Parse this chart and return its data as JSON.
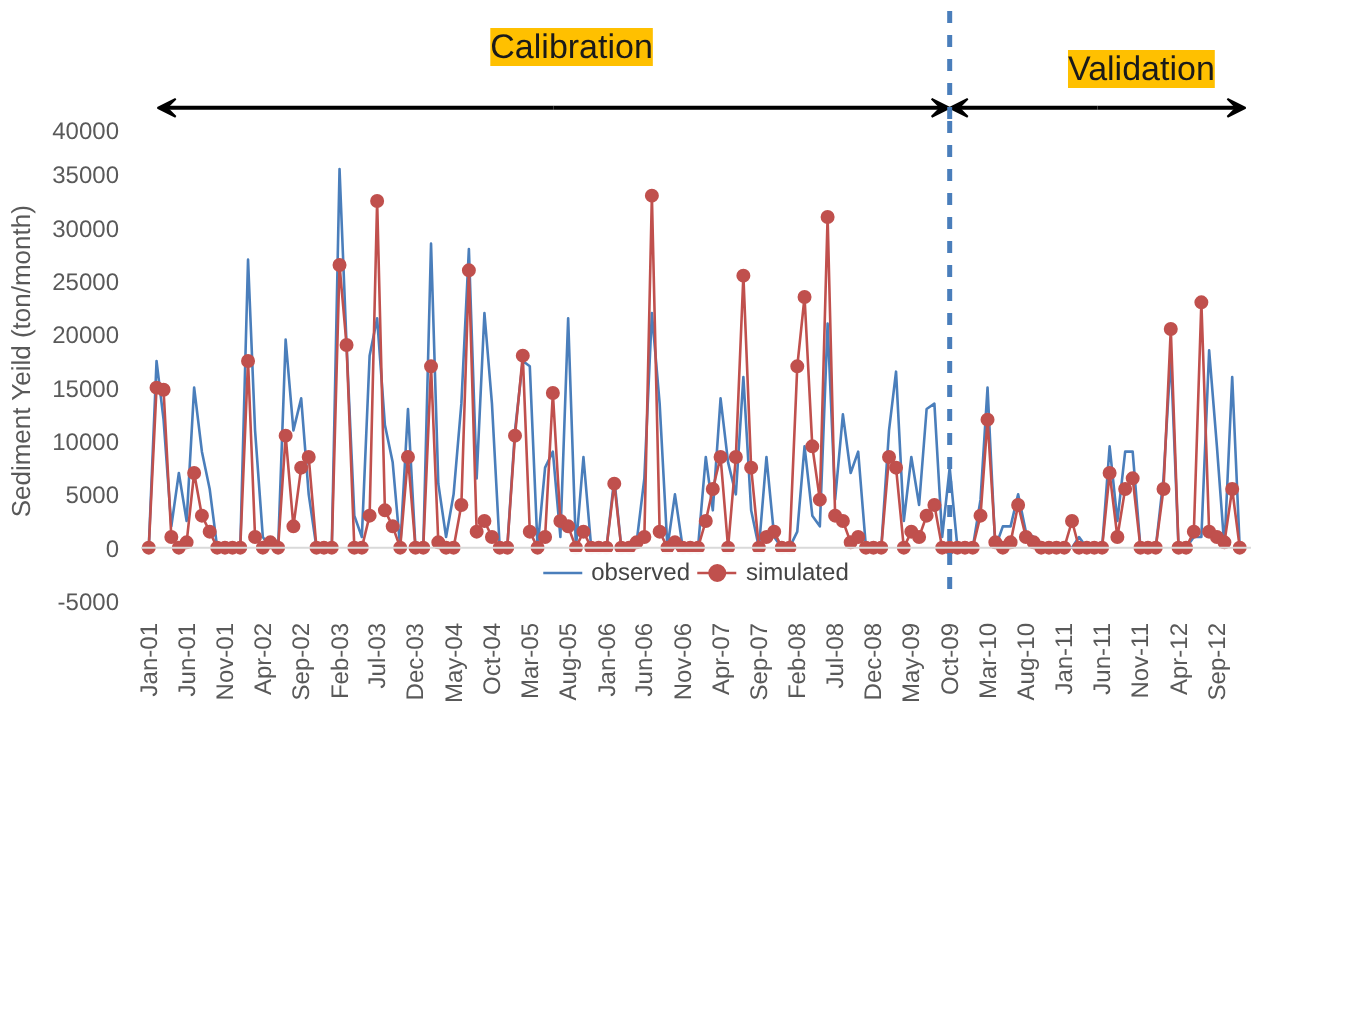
{
  "chart_data": {
    "type": "line",
    "x": [
      "2001-01",
      "2001-02",
      "2001-03",
      "2001-04",
      "2001-05",
      "2001-06",
      "2001-07",
      "2001-08",
      "2001-09",
      "2001-10",
      "2001-11",
      "2001-12",
      "2002-01",
      "2002-02",
      "2002-03",
      "2002-04",
      "2002-05",
      "2002-06",
      "2002-07",
      "2002-08",
      "2002-09",
      "2002-10",
      "2002-11",
      "2002-12",
      "2003-01",
      "2003-02",
      "2003-03",
      "2003-04",
      "2003-05",
      "2003-06",
      "2003-07",
      "2003-08",
      "2003-09",
      "2003-10",
      "2003-11",
      "2003-12",
      "2004-01",
      "2004-02",
      "2004-03",
      "2004-04",
      "2004-05",
      "2004-06",
      "2004-07",
      "2004-08",
      "2004-09",
      "2004-10",
      "2004-11",
      "2004-12",
      "2005-01",
      "2005-02",
      "2005-03",
      "2005-04",
      "2005-05",
      "2005-06",
      "2005-07",
      "2005-08",
      "2005-09",
      "2005-10",
      "2005-11",
      "2005-12",
      "2006-01",
      "2006-02",
      "2006-03",
      "2006-04",
      "2006-05",
      "2006-06",
      "2006-07",
      "2006-08",
      "2006-09",
      "2006-10",
      "2006-11",
      "2006-12",
      "2007-01",
      "2007-02",
      "2007-03",
      "2007-04",
      "2007-05",
      "2007-06",
      "2007-07",
      "2007-08",
      "2007-09",
      "2007-10",
      "2007-11",
      "2007-12",
      "2008-01",
      "2008-02",
      "2008-03",
      "2008-04",
      "2008-05",
      "2008-06",
      "2008-07",
      "2008-08",
      "2008-09",
      "2008-10",
      "2008-11",
      "2008-12",
      "2009-01",
      "2009-02",
      "2009-03",
      "2009-04",
      "2009-05",
      "2009-06",
      "2009-07",
      "2009-08",
      "2009-09",
      "2009-10",
      "2009-11",
      "2009-12",
      "2010-01",
      "2010-02",
      "2010-03",
      "2010-04",
      "2010-05",
      "2010-06",
      "2010-07",
      "2010-08",
      "2010-09",
      "2010-10",
      "2010-11",
      "2010-12",
      "2011-01",
      "2011-02",
      "2011-03",
      "2011-04",
      "2011-05",
      "2011-06",
      "2011-07",
      "2011-08",
      "2011-09",
      "2011-10",
      "2011-11",
      "2011-12",
      "2012-01",
      "2012-02",
      "2012-03",
      "2012-04",
      "2012-05",
      "2012-06",
      "2012-07",
      "2012-08",
      "2012-09",
      "2012-10",
      "2012-11",
      "2012-12"
    ],
    "series": [
      {
        "name": "observed",
        "color": "#4a7ebb",
        "marker": "none",
        "values": [
          0,
          17500,
          12000,
          2000,
          7000,
          2500,
          15000,
          9000,
          5500,
          0,
          0,
          0,
          0,
          27000,
          11000,
          1000,
          0,
          0,
          19500,
          11000,
          14000,
          5000,
          0,
          0,
          0,
          35500,
          19000,
          3000,
          1000,
          18000,
          21500,
          11500,
          8000,
          0,
          13000,
          0,
          0,
          28500,
          6000,
          1000,
          5000,
          13500,
          28000,
          6500,
          22000,
          13500,
          0,
          0,
          11000,
          17500,
          17000,
          0,
          7500,
          9000,
          1000,
          21500,
          0,
          8500,
          0,
          0,
          0,
          6500,
          0,
          0,
          500,
          6500,
          22000,
          13500,
          0,
          5000,
          0,
          0,
          0,
          8500,
          3500,
          14000,
          8000,
          5000,
          16000,
          3500,
          0,
          8500,
          1000,
          0,
          0,
          1500,
          9500,
          3000,
          2000,
          21000,
          4500,
          12500,
          7000,
          9000,
          0,
          0,
          0,
          11000,
          16500,
          2500,
          8500,
          4000,
          13000,
          13500,
          1000,
          7500,
          0,
          0,
          0,
          4500,
          15000,
          0,
          2000,
          2000,
          5000,
          1500,
          1000,
          0,
          0,
          0,
          0,
          0,
          1000,
          0,
          0,
          0,
          9500,
          2500,
          9000,
          9000,
          0,
          0,
          0,
          6500,
          18000,
          0,
          0,
          1000,
          1000,
          18500,
          9500,
          0,
          16000,
          0
        ]
      },
      {
        "name": "simulated",
        "color": "#c0504d",
        "marker": "circle",
        "values": [
          0,
          15000,
          14800,
          1000,
          0,
          500,
          7000,
          3000,
          1500,
          0,
          0,
          0,
          0,
          17500,
          1000,
          0,
          500,
          0,
          10500,
          2000,
          7500,
          8500,
          0,
          0,
          0,
          26500,
          19000,
          0,
          0,
          3000,
          32500,
          3500,
          2000,
          0,
          8500,
          0,
          0,
          17000,
          500,
          0,
          0,
          4000,
          26000,
          1500,
          2500,
          1000,
          0,
          0,
          10500,
          18000,
          1500,
          0,
          1000,
          14500,
          2500,
          2000,
          0,
          1500,
          0,
          0,
          0,
          6000,
          0,
          0,
          500,
          1000,
          33000,
          1500,
          0,
          500,
          0,
          0,
          0,
          2500,
          5500,
          8500,
          0,
          8500,
          25500,
          7500,
          0,
          1000,
          1500,
          0,
          0,
          17000,
          23500,
          9500,
          4500,
          31000,
          3000,
          2500,
          500,
          1000,
          0,
          0,
          0,
          8500,
          7500,
          0,
          1500,
          1000,
          3000,
          4000,
          0,
          0,
          0,
          0,
          0,
          3000,
          12000,
          500,
          0,
          500,
          4000,
          1000,
          500,
          0,
          0,
          0,
          0,
          2500,
          0,
          0,
          0,
          0,
          7000,
          1000,
          5500,
          6500,
          0,
          0,
          0,
          5500,
          20500,
          0,
          0,
          1500,
          23000,
          1500,
          1000,
          500,
          5500,
          0
        ]
      }
    ],
    "ylabel": "Sediment Yeild (ton/month)",
    "ylim": [
      -5000,
      40000
    ],
    "yticks": [
      -5000,
      0,
      5000,
      10000,
      15000,
      20000,
      25000,
      30000,
      35000,
      40000
    ],
    "xlim": [
      "2000-12-01",
      "2013-01-15"
    ],
    "xticks": [
      {
        "value": "2001-01",
        "label": "Jan-01"
      },
      {
        "value": "2001-06",
        "label": "Jun-01"
      },
      {
        "value": "2001-11",
        "label": "Nov-01"
      },
      {
        "value": "2002-04",
        "label": "Apr-02"
      },
      {
        "value": "2002-09",
        "label": "Sep-02"
      },
      {
        "value": "2003-02",
        "label": "Feb-03"
      },
      {
        "value": "2003-07",
        "label": "Jul-03"
      },
      {
        "value": "2003-12",
        "label": "Dec-03"
      },
      {
        "value": "2004-05",
        "label": "May-04"
      },
      {
        "value": "2004-10",
        "label": "Oct-04"
      },
      {
        "value": "2005-03",
        "label": "Mar-05"
      },
      {
        "value": "2005-08",
        "label": "Aug-05"
      },
      {
        "value": "2006-01",
        "label": "Jan-06"
      },
      {
        "value": "2006-06",
        "label": "Jun-06"
      },
      {
        "value": "2006-11",
        "label": "Nov-06"
      },
      {
        "value": "2007-04",
        "label": "Apr-07"
      },
      {
        "value": "2007-09",
        "label": "Sep-07"
      },
      {
        "value": "2008-02",
        "label": "Feb-08"
      },
      {
        "value": "2008-07",
        "label": "Jul-08"
      },
      {
        "value": "2008-12",
        "label": "Dec-08"
      },
      {
        "value": "2009-05",
        "label": "May-09"
      },
      {
        "value": "2009-10",
        "label": "Oct-09"
      },
      {
        "value": "2010-03",
        "label": "Mar-10"
      },
      {
        "value": "2010-08",
        "label": "Aug-10"
      },
      {
        "value": "2011-01",
        "label": "Jan-11"
      },
      {
        "value": "2011-06",
        "label": "Jun-11"
      },
      {
        "value": "2011-11",
        "label": "Nov-11"
      },
      {
        "value": "2012-04",
        "label": "Apr-12"
      },
      {
        "value": "2012-09",
        "label": "Sep-12"
      }
    ],
    "ref_lines": [
      {
        "axis": "x",
        "value": "2009-10",
        "color": "#4a7ebb",
        "line_style": "dashed"
      }
    ],
    "annotations": [
      "Calibration",
      "Validation"
    ],
    "grid": false,
    "legend": "bottom",
    "line_style": "solid"
  }
}
